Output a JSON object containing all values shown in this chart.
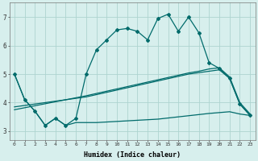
{
  "xlabel": "Humidex (Indice chaleur)",
  "background_color": "#d7efed",
  "grid_color": "#aed4d0",
  "line_color": "#006b6b",
  "xlim": [
    -0.5,
    23.5
  ],
  "ylim": [
    2.7,
    7.5
  ],
  "x_ticks": [
    0,
    1,
    2,
    3,
    4,
    5,
    6,
    7,
    8,
    9,
    10,
    11,
    12,
    13,
    14,
    15,
    16,
    17,
    18,
    19,
    20,
    21,
    22,
    23
  ],
  "y_ticks": [
    3,
    4,
    5,
    6,
    7
  ],
  "line_top_x": [
    0,
    1,
    2,
    3,
    4,
    5,
    6,
    7,
    8,
    9,
    10,
    11,
    12,
    13,
    14,
    15,
    16,
    17,
    18,
    19,
    20,
    21,
    22,
    23
  ],
  "line_top_y": [
    5.0,
    4.1,
    3.7,
    3.2,
    3.45,
    3.2,
    3.45,
    5.0,
    5.85,
    6.2,
    6.55,
    6.6,
    6.5,
    6.2,
    6.95,
    7.1,
    6.5,
    7.0,
    6.45,
    5.4,
    5.2,
    4.85,
    3.95,
    3.55
  ],
  "line_bot_x": [
    0,
    1,
    2,
    3,
    4,
    5,
    6,
    7,
    8,
    9,
    10,
    11,
    12,
    13,
    14,
    15,
    16,
    17,
    18,
    19,
    20,
    21,
    22,
    23
  ],
  "line_bot_y": [
    5.0,
    4.1,
    3.7,
    3.2,
    3.45,
    3.2,
    3.3,
    3.3,
    3.3,
    3.32,
    3.34,
    3.36,
    3.38,
    3.4,
    3.42,
    3.46,
    3.5,
    3.54,
    3.58,
    3.62,
    3.65,
    3.68,
    3.6,
    3.55
  ],
  "line_trend1_x": [
    0,
    1,
    2,
    3,
    4,
    5,
    6,
    7,
    8,
    9,
    10,
    11,
    12,
    13,
    14,
    15,
    16,
    17,
    18,
    19,
    20,
    21,
    22,
    23
  ],
  "line_trend1_y": [
    3.85,
    3.9,
    3.95,
    4.0,
    4.05,
    4.1,
    4.15,
    4.2,
    4.28,
    4.36,
    4.44,
    4.52,
    4.6,
    4.68,
    4.76,
    4.84,
    4.92,
    5.0,
    5.05,
    5.1,
    5.15,
    4.85,
    3.95,
    3.55
  ],
  "line_trend2_x": [
    0,
    1,
    2,
    3,
    4,
    5,
    6,
    7,
    8,
    9,
    10,
    11,
    12,
    13,
    14,
    15,
    16,
    17,
    18,
    19,
    20,
    21,
    22,
    23
  ],
  "line_trend2_y": [
    3.75,
    3.82,
    3.89,
    3.96,
    4.03,
    4.1,
    4.17,
    4.24,
    4.32,
    4.4,
    4.48,
    4.56,
    4.64,
    4.72,
    4.8,
    4.88,
    4.96,
    5.04,
    5.1,
    5.18,
    5.22,
    4.9,
    4.0,
    3.6
  ]
}
